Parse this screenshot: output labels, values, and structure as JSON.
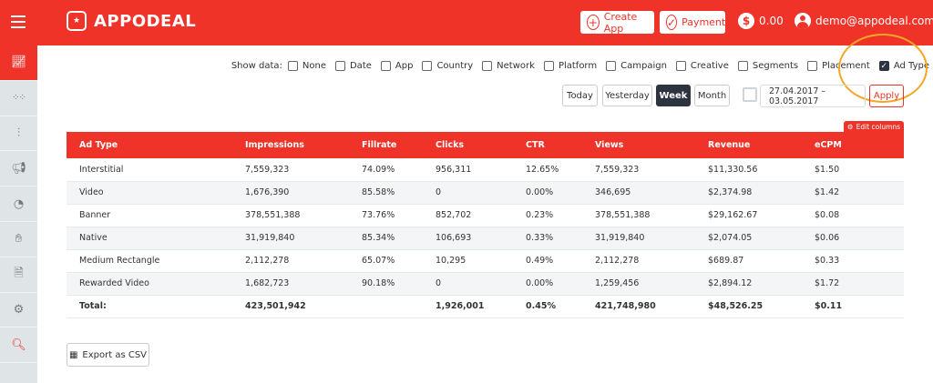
{
  "header": {
    "logo": "APPODEAL",
    "create_app": "Create App",
    "payment": "Payment",
    "balance": "0.00",
    "user": "demo@appodeal.com"
  },
  "sidebar": {
    "items": [
      {
        "icon": "chart-icon",
        "active": true
      },
      {
        "icon": "apps-grid-icon"
      },
      {
        "icon": "sliders-icon"
      },
      {
        "icon": "megaphone-icon"
      },
      {
        "icon": "pie-chart-icon"
      },
      {
        "icon": "payout-hand-icon"
      },
      {
        "icon": "document-icon"
      },
      {
        "icon": "settings-window-icon"
      },
      {
        "icon": "search-analytics-icon"
      }
    ]
  },
  "filters": {
    "show_data_label": "Show data:",
    "options": [
      {
        "label": "None",
        "checked": false
      },
      {
        "label": "Date",
        "checked": false
      },
      {
        "label": "App",
        "checked": false
      },
      {
        "label": "Country",
        "checked": false
      },
      {
        "label": "Network",
        "checked": false
      },
      {
        "label": "Platform",
        "checked": false
      },
      {
        "label": "Campaign",
        "checked": false
      },
      {
        "label": "Creative",
        "checked": false
      },
      {
        "label": "Segments",
        "checked": false
      },
      {
        "label": "Placement",
        "checked": false
      },
      {
        "label": "Ad Type",
        "checked": true
      }
    ]
  },
  "periods": {
    "today": "Today",
    "yesterday": "Yesterday",
    "week": "Week",
    "month": "Month",
    "active": "Week"
  },
  "date_range": "27.04.2017 – 03.05.2017",
  "apply": "Apply",
  "edit_columns": "Edit columns",
  "table": {
    "columns": [
      "Ad Type",
      "Impressions",
      "Fillrate",
      "Clicks",
      "CTR",
      "Views",
      "Revenue",
      "eCPM"
    ],
    "rows": [
      [
        "Interstitial",
        "7,559,323",
        "74.09%",
        "956,311",
        "12.65%",
        "7,559,323",
        "$11,330.56",
        "$1.50"
      ],
      [
        "Video",
        "1,676,390",
        "85.58%",
        "0",
        "0.00%",
        "346,695",
        "$2,374.98",
        "$1.42"
      ],
      [
        "Banner",
        "378,551,388",
        "73.76%",
        "852,702",
        "0.23%",
        "378,551,388",
        "$29,162.67",
        "$0.08"
      ],
      [
        "Native",
        "31,919,840",
        "85.34%",
        "106,693",
        "0.33%",
        "31,919,840",
        "$2,074.05",
        "$0.06"
      ],
      [
        "Medium Rectangle",
        "2,112,278",
        "65.07%",
        "10,295",
        "0.49%",
        "2,112,278",
        "$689.87",
        "$0.33"
      ],
      [
        "Rewarded Video",
        "1,682,723",
        "90.18%",
        "0",
        "0.00%",
        "1,259,456",
        "$2,894.12",
        "$1.72"
      ]
    ],
    "total": [
      "Total:",
      "423,501,942",
      "",
      "1,926,001",
      "0.45%",
      "421,748,980",
      "$48,526.25",
      "$0.11"
    ]
  },
  "export": "Export as CSV",
  "colors": {
    "brand": "#EF3329",
    "highlight": "#F5A623",
    "active": "#2d3440"
  }
}
